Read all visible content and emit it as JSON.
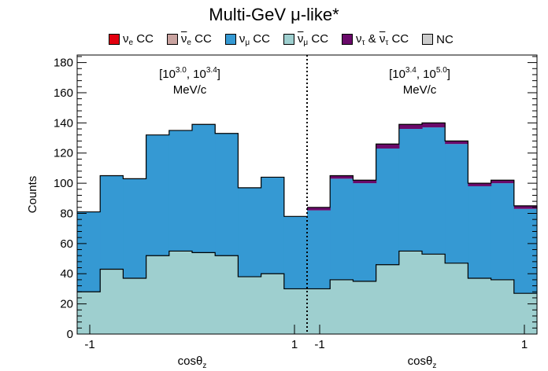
{
  "title": "Multi-GeV μ-like*",
  "legend": [
    {
      "label": "ν",
      "sub": "e",
      "suffix": " CC",
      "bar": false,
      "color": "#e3000f"
    },
    {
      "label": "ν",
      "sub": "e",
      "suffix": " CC",
      "bar": true,
      "color": "#c9a3a0"
    },
    {
      "label": "ν",
      "sub": "μ",
      "suffix": " CC",
      "bar": false,
      "color": "#3599d3"
    },
    {
      "label": "ν",
      "sub": "μ",
      "suffix": " CC",
      "bar": true,
      "color": "#9ecfcf"
    },
    {
      "label": "ν",
      "sub": "τ",
      "suffix": " & ",
      "label2": "ν",
      "sub2": "τ",
      "suffix2": " CC",
      "bar": false,
      "color": "#6a0a6a"
    },
    {
      "label": "NC",
      "color": "#cccccc"
    }
  ],
  "annotations": {
    "left": {
      "base1": "[10",
      "exp1": "3.0",
      "sep": ", 10",
      "exp2": "3.4",
      "close": "]",
      "unit": "MeV/c"
    },
    "right": {
      "base1": "[10",
      "exp1": "3.4",
      "sep": ", 10",
      "exp2": "5.0",
      "close": "]",
      "unit": "MeV/c"
    }
  },
  "chart_data": {
    "type": "stacked-histogram",
    "title": "Multi-GeV μ-like*",
    "ylabel": "Counts",
    "xlabel": "cosθz",
    "ylim": [
      0,
      185
    ],
    "yticks": [
      0,
      20,
      40,
      60,
      80,
      100,
      120,
      140,
      160,
      180
    ],
    "panels": [
      {
        "label": "[10^3.0, 10^3.4] MeV/c",
        "xticks": [
          "-1",
          "1"
        ],
        "bins": 10
      },
      {
        "label": "[10^3.4, 10^5.0] MeV/c",
        "xticks": [
          "-1",
          "1"
        ],
        "bins": 10
      }
    ],
    "series": [
      {
        "name": "ν_μ-bar CC",
        "color": "#9ecfcf",
        "values": [
          28,
          43,
          37,
          52,
          55,
          54,
          52,
          38,
          40,
          30,
          30,
          36,
          35,
          46,
          55,
          53,
          47,
          37,
          36,
          27
        ]
      },
      {
        "name": "ν_μ CC",
        "color": "#3599d3",
        "values": [
          53,
          62,
          66,
          80,
          80,
          85,
          81,
          59,
          64,
          48,
          52,
          67,
          65,
          77,
          81,
          84,
          79,
          61,
          64,
          56
        ]
      },
      {
        "name": "ν_τ & ν_τ-bar CC",
        "color": "#6a0a6a",
        "values": [
          0,
          0,
          0,
          0,
          0,
          0,
          0,
          0,
          0,
          0,
          2,
          2,
          2,
          3,
          3,
          3,
          2,
          2,
          2,
          2
        ]
      },
      {
        "name": "NC",
        "color": "#cccccc",
        "values": [
          0,
          0,
          0,
          0,
          0,
          0,
          0,
          0,
          0,
          0,
          0,
          0,
          0,
          0,
          0,
          0,
          0,
          0,
          0,
          0
        ]
      },
      {
        "name": "ν_e CC",
        "color": "#e3000f",
        "values": [
          0,
          0,
          0,
          0,
          0,
          0,
          0,
          0,
          0,
          0,
          0,
          0,
          0,
          0,
          0,
          0,
          0,
          0,
          0,
          0
        ]
      },
      {
        "name": "ν_e-bar CC",
        "color": "#c9a3a0",
        "values": [
          0,
          0,
          0,
          0,
          0,
          0,
          0,
          0,
          0,
          0,
          0,
          0,
          0,
          0,
          0,
          0,
          0,
          0,
          0,
          0
        ]
      }
    ],
    "total": [
      81,
      105,
      103,
      132,
      135,
      139,
      133,
      97,
      104,
      78,
      84,
      105,
      102,
      126,
      139,
      140,
      128,
      100,
      102,
      85
    ]
  }
}
